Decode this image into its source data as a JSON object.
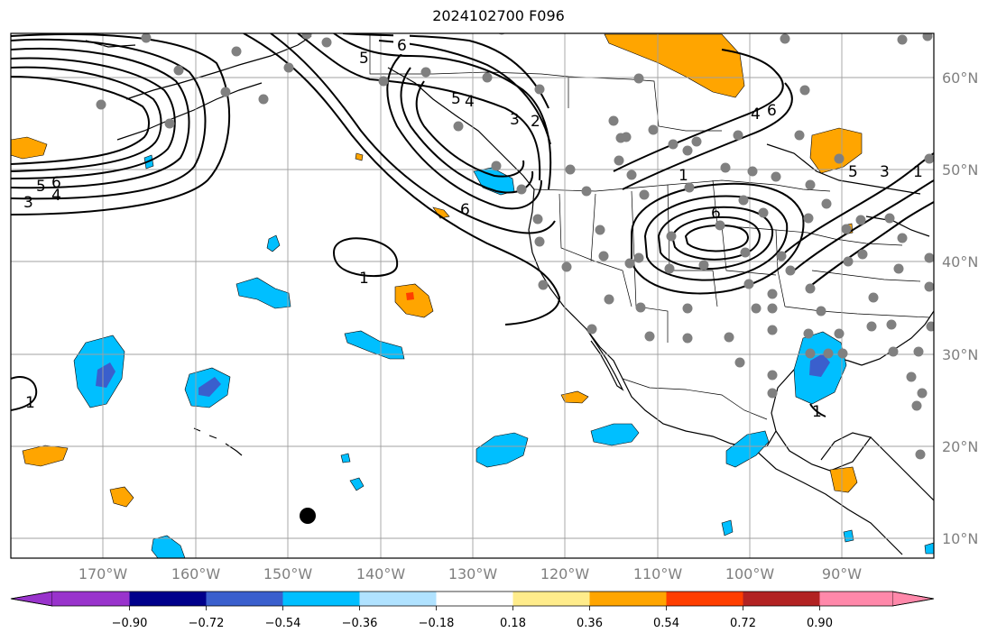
{
  "title": "2024102700 F096",
  "map": {
    "lon_range": [
      -180,
      -80
    ],
    "lat_range": [
      8,
      65
    ],
    "grid": true,
    "lon_labels": [
      "170°W",
      "160°W",
      "150°W",
      "140°W",
      "130°W",
      "120°W",
      "110°W",
      "100°W",
      "90°W"
    ],
    "lat_labels": [
      "60°N",
      "50°N",
      "40°N",
      "30°N",
      "20°N",
      "10°N"
    ],
    "contour_labels": [
      "6",
      "5",
      "4",
      "3",
      "5",
      "6",
      "3",
      "2",
      "5",
      "4",
      "6",
      "1",
      "1",
      "6",
      "4",
      "6",
      "3",
      "5",
      "1",
      "1",
      "1"
    ]
  },
  "colorbar": {
    "colors": [
      "#9933cc",
      "#00008b",
      "#3a5fcd",
      "#00bfff",
      "#b0e2ff",
      "#ffffff",
      "#ffec8b",
      "#ffa500",
      "#ff3e00",
      "#b22222",
      "#ff88aa"
    ],
    "tick_labels": [
      "−0.90",
      "−0.72",
      "−0.54",
      "−0.36",
      "−0.18",
      "0.18",
      "0.36",
      "0.54",
      "0.72",
      "0.90"
    ]
  }
}
